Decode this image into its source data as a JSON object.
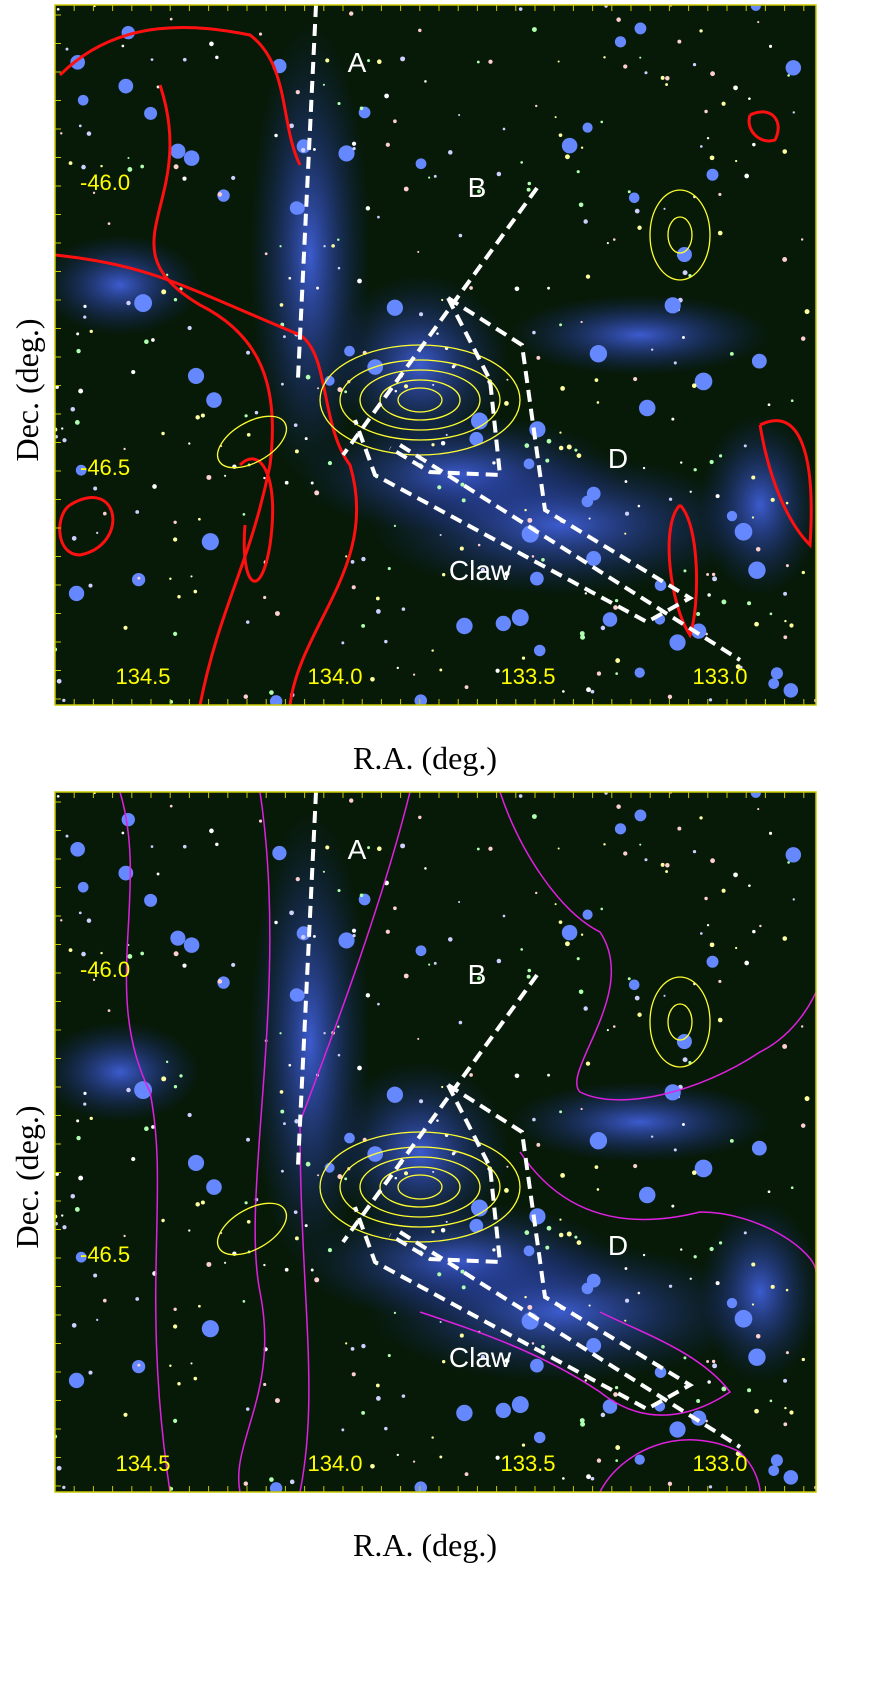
{
  "panels": [
    {
      "dec_ticks": [
        "-46.0",
        "-46.5"
      ],
      "ra_ticks": [
        "134.5",
        "134.0",
        "133.5",
        "133.0"
      ],
      "regions": [
        "A",
        "B",
        "D",
        "Claw"
      ],
      "x_label": "R.A. (deg.)",
      "y_label": "Dec. (deg.)"
    },
    {
      "dec_ticks": [
        "-46.0",
        "-46.5"
      ],
      "ra_ticks": [
        "134.5",
        "134.0",
        "133.5",
        "133.0"
      ],
      "regions": [
        "A",
        "B",
        "D",
        "Claw"
      ],
      "x_label": "R.A. (deg.)",
      "y_label": "Dec. (deg.)"
    }
  ]
}
